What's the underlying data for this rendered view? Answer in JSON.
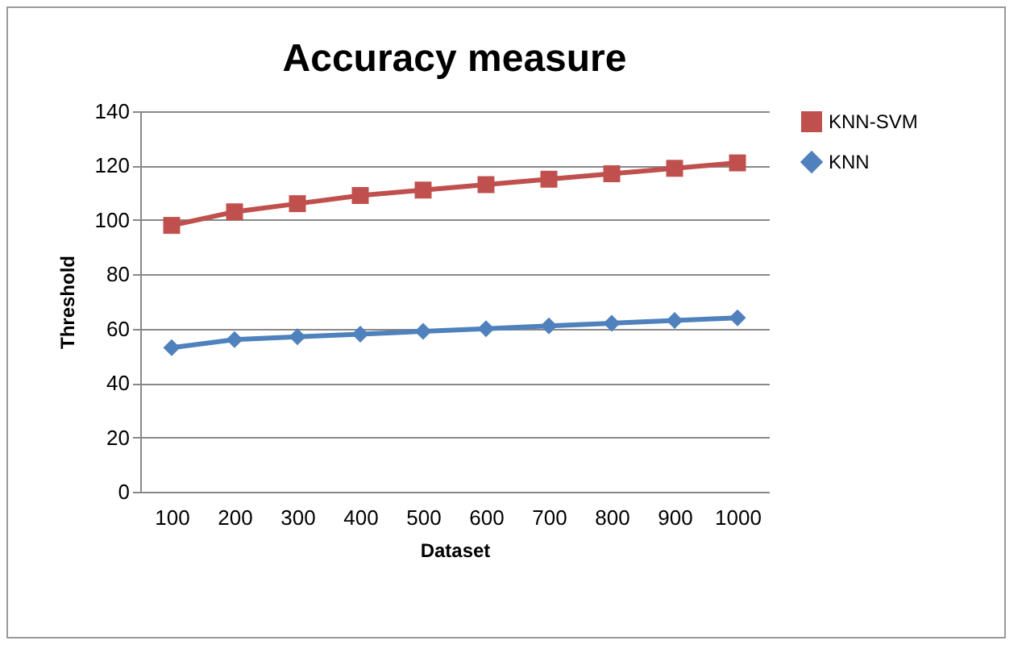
{
  "chart_data": {
    "type": "line",
    "title": "Accuracy measure",
    "xlabel": "Dataset",
    "ylabel": "Threshold",
    "categories": [
      "100",
      "200",
      "300",
      "400",
      "500",
      "600",
      "700",
      "800",
      "900",
      "1000"
    ],
    "series": [
      {
        "name": "KNN-SVM",
        "color": "#c0504d",
        "marker": "square",
        "values": [
          98,
          103,
          106,
          109,
          111,
          113,
          115,
          117,
          119,
          121
        ]
      },
      {
        "name": "KNN",
        "color": "#4f81bd",
        "marker": "diamond",
        "values": [
          53,
          56,
          57,
          58,
          59,
          60,
          61,
          62,
          63,
          64
        ]
      }
    ],
    "ylim": [
      0,
      140
    ],
    "yticks": [
      0,
      20,
      40,
      60,
      80,
      100,
      120,
      140
    ],
    "grid": "y",
    "legend": "right"
  }
}
